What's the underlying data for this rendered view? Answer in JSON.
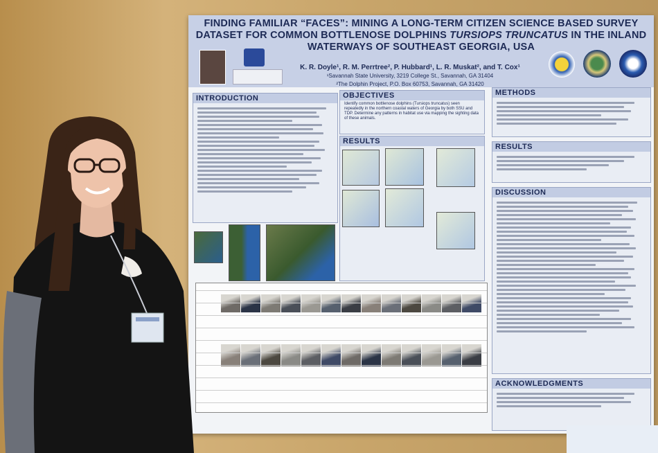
{
  "poster": {
    "title_line1": "FINDING FAMILIAR “FACES”: MINING A LONG-TERM CITIZEN SCIENCE BASED SURVEY",
    "title_line2a": "DATASET FOR COMMON BOTTLENOSE DOLPHINS ",
    "title_line2b": "TURSIOPS TRUNCATUS",
    "title_line2c": " IN THE INLAND",
    "title_line3": "WATERWAYS OF SOUTHEAST GEORGIA, USA",
    "authors": "K. R. Doyle¹, R. M. Perrtree², P. Hubbard¹, L. R. Muskat², and T. Cox¹",
    "affiliation1": "¹Savannah State University, 3219 College St., Savannah, GA 31404",
    "affiliation2": "²The Dolphin Project, P.O. Box 60753, Savannah, GA 31420",
    "sections": {
      "introduction": "INTRODUCTION",
      "objectives": "OBJECTIVES",
      "results_left": "RESULTS",
      "methods": "METHODS",
      "results_right": "RESULTS",
      "discussion": "DISCUSSION",
      "acknowledgments": "ACKNOWLEDGMENTS"
    },
    "objective_text": "Identify common bottlenose dolphins (Tursiops truncatus) seen repeatedly in the northern coastal waters of Georgia by both SSU and TDP. Determine any patterns in habitat use via mapping the sighting data of these animals."
  },
  "colors": {
    "wall": "#c8a56a",
    "banner": "#c7d0e6",
    "heading_text": "#1d2a55",
    "section_header": "#c2cce3"
  }
}
